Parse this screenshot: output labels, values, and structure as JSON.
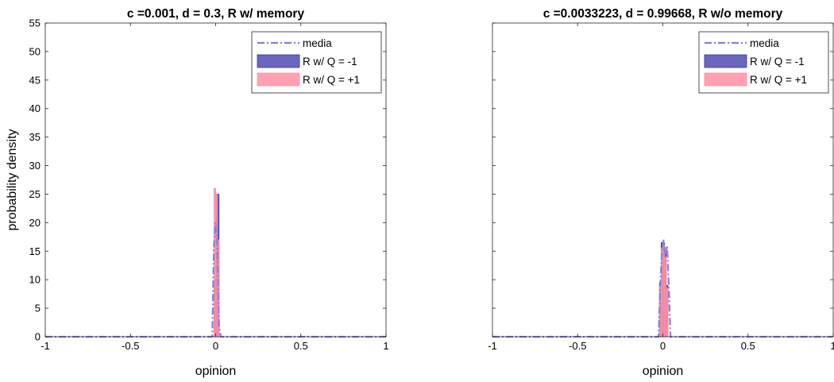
{
  "colors": {
    "media": "#8b7fd6",
    "q_minus": "#3a34a6",
    "q_plus": "#ff8fa6",
    "axis": "#262626"
  },
  "chart_data": [
    {
      "type": "bar",
      "title": "c =0.001, d = 0.3, R w/ memory",
      "xlabel": "opinion",
      "ylabel": "probability density",
      "xlim": [
        -1,
        1
      ],
      "ylim": [
        0,
        55
      ],
      "xticks": [
        -1,
        -0.5,
        0,
        0.5,
        1
      ],
      "xtick_labels": [
        "-1",
        "-0.5",
        "0",
        "0.5",
        "1"
      ],
      "yticks": [
        0,
        5,
        10,
        15,
        20,
        25,
        30,
        35,
        40,
        45,
        50,
        55
      ],
      "ytick_labels": [
        "0",
        "5",
        "10",
        "15",
        "20",
        "25",
        "30",
        "35",
        "40",
        "45",
        "50",
        "55"
      ],
      "grid": false,
      "legend_position": "top-right",
      "legend": [
        "media",
        "R w/ Q = -1",
        "R w/ Q = +1"
      ],
      "series": [
        {
          "name": "media",
          "kind": "line",
          "style": "dash-dot",
          "x": [
            -1,
            -0.02,
            -0.01,
            0,
            0.01,
            0.02,
            0.03,
            1
          ],
          "y": [
            0,
            0,
            16,
            20,
            16,
            2,
            0,
            0
          ]
        },
        {
          "name": "R w/ Q = -1",
          "kind": "hist",
          "bins": [
            [
              -0.01,
              0.0,
              10
            ],
            [
              0.0,
              0.01,
              25
            ],
            [
              0.01,
              0.02,
              25
            ]
          ]
        },
        {
          "name": "R w/ Q = +1",
          "kind": "hist",
          "bins": [
            [
              -0.01,
              0.0,
              26
            ],
            [
              0.0,
              0.01,
              25
            ],
            [
              0.01,
              0.02,
              17
            ]
          ]
        }
      ]
    },
    {
      "type": "bar",
      "title": "c =0.0033223, d = 0.99668, R w/o memory",
      "xlabel": "opinion",
      "ylabel": "",
      "xlim": [
        -1,
        1
      ],
      "ylim": [
        0,
        55
      ],
      "xticks": [
        -1,
        -0.5,
        0,
        0.5,
        1
      ],
      "xtick_labels": [
        "-1",
        "-0.5",
        "0",
        "0.5",
        "1"
      ],
      "yticks": [
        0,
        5,
        10,
        15,
        20,
        25,
        30,
        35,
        40,
        45,
        50,
        55
      ],
      "ytick_labels": [],
      "grid": false,
      "legend_position": "top-right",
      "legend": [
        "media",
        "R w/ Q = -1",
        "R w/ Q = +1"
      ],
      "series": [
        {
          "name": "media",
          "kind": "line",
          "style": "dash-dot",
          "x": [
            -1,
            -0.025,
            -0.015,
            -0.005,
            0.005,
            0.015,
            0.025,
            0.035,
            0.045,
            1
          ],
          "y": [
            0,
            0,
            9,
            15,
            17,
            14,
            16,
            9,
            0,
            0
          ]
        },
        {
          "name": "R w/ Q = -1",
          "kind": "hist",
          "bins": [
            [
              -0.02,
              -0.01,
              9.5
            ],
            [
              -0.01,
              0.0,
              16.5
            ],
            [
              0.0,
              0.01,
              16.5
            ],
            [
              0.01,
              0.02,
              15
            ],
            [
              0.02,
              0.03,
              9
            ]
          ]
        },
        {
          "name": "R w/ Q = +1",
          "kind": "hist",
          "bins": [
            [
              -0.02,
              -0.01,
              9
            ],
            [
              -0.01,
              0.0,
              15.5
            ],
            [
              0.0,
              0.01,
              16
            ],
            [
              0.01,
              0.02,
              14
            ],
            [
              0.02,
              0.03,
              8.5
            ]
          ]
        }
      ]
    }
  ]
}
